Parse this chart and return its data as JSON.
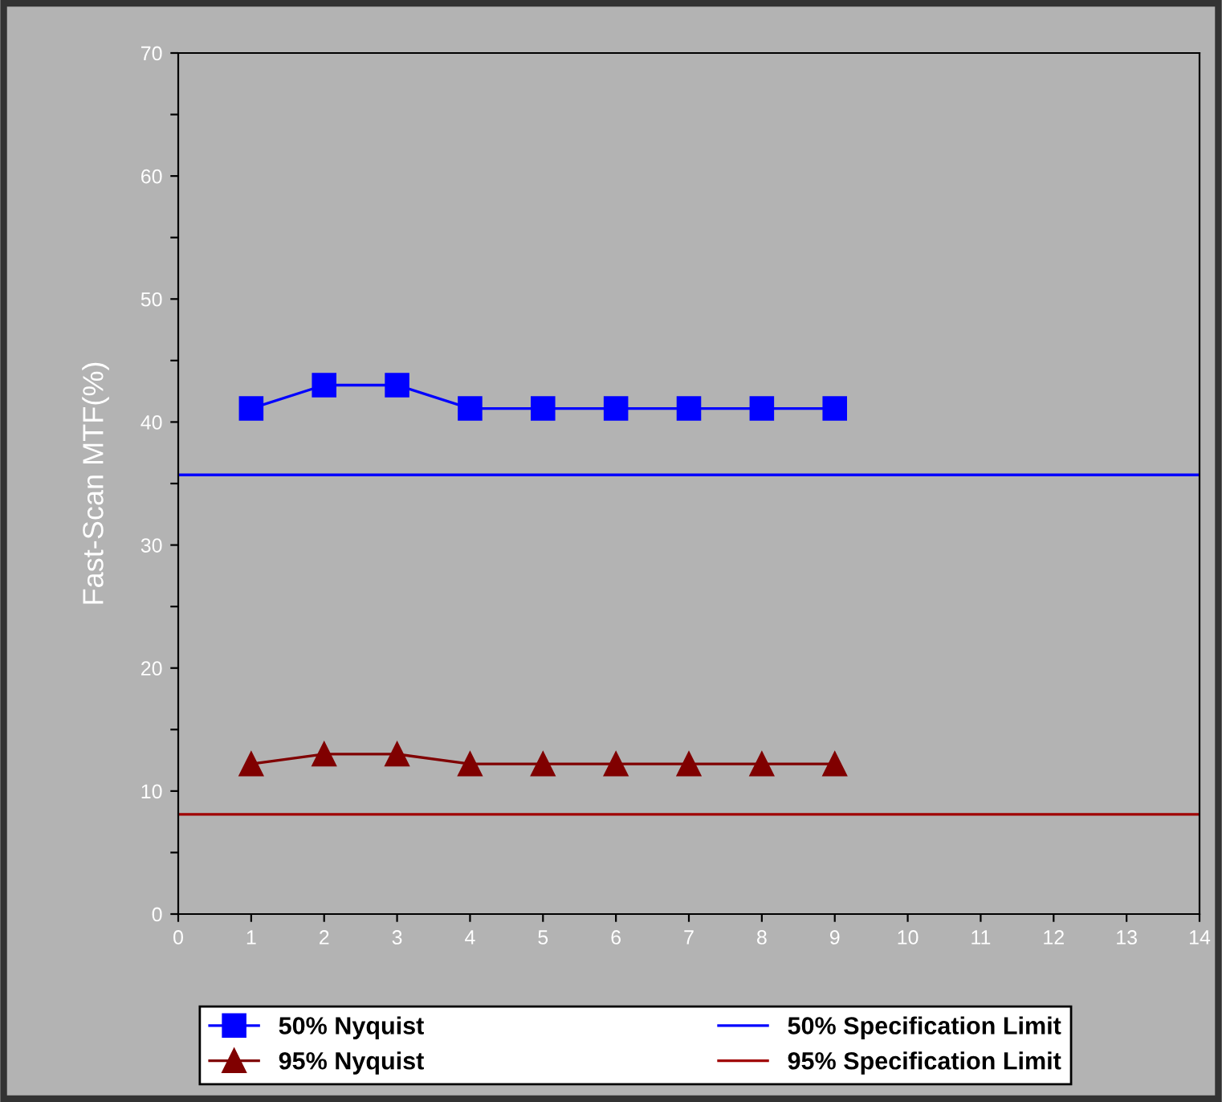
{
  "chart_data": {
    "type": "line",
    "ylabel": "Fast-Scan MTF(%)",
    "x": [
      1,
      2,
      3,
      4,
      5,
      6,
      7,
      8,
      9
    ],
    "series": [
      {
        "name": "50% Nyquist",
        "color": "#0000ff",
        "marker": "square",
        "values": [
          41.1,
          43.0,
          43.0,
          41.1,
          41.1,
          41.1,
          41.1,
          41.1,
          41.1
        ]
      },
      {
        "name": "95% Nyquist",
        "color": "#800000",
        "marker": "triangle",
        "values": [
          12.2,
          13.0,
          13.0,
          12.2,
          12.2,
          12.2,
          12.2,
          12.2,
          12.2
        ]
      }
    ],
    "ref_lines": [
      {
        "axis": "y",
        "value": 35.7,
        "label": "50% Specification Limit",
        "color": "#0000ff",
        "line_style": "solid"
      },
      {
        "axis": "y",
        "value": 8.1,
        "label": "95% Specification Limit",
        "color": "#a00000",
        "line_style": "solid"
      }
    ],
    "xlim": [
      0,
      14
    ],
    "xticks": [
      0,
      1,
      2,
      3,
      4,
      5,
      6,
      7,
      8,
      9,
      10,
      11,
      12,
      13,
      14
    ],
    "ylim": [
      0,
      70
    ],
    "yticks": [
      0,
      {
        "value": 5,
        "label": null
      },
      10,
      {
        "value": 15,
        "label": null
      },
      20,
      {
        "value": 25,
        "label": null
      },
      30,
      {
        "value": 35,
        "label": null
      },
      40,
      {
        "value": 45,
        "label": null
      },
      50,
      {
        "value": 55,
        "label": null
      },
      60,
      {
        "value": 65,
        "label": null
      },
      70
    ],
    "legend": "bottom",
    "line_style": "solid"
  }
}
